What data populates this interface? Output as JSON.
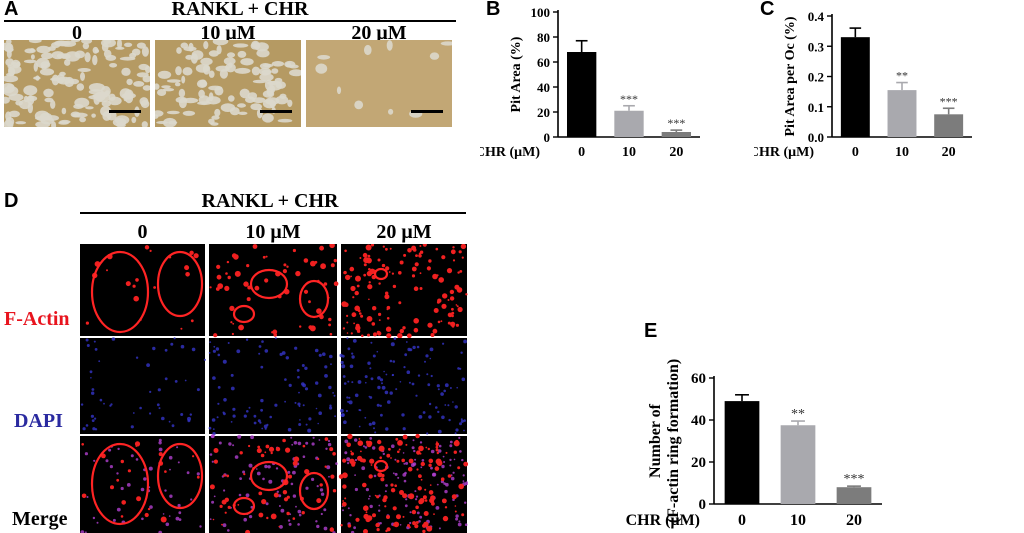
{
  "panel_a": {
    "letter": "A",
    "treatment": "RANKL + CHR",
    "concentrations": [
      "0",
      "10 μM",
      "20 μM"
    ],
    "pit_colors": {
      "base": "#b59a63",
      "bright": "#dcd8cc"
    }
  },
  "panel_d": {
    "letter": "D",
    "treatment": "RANKL + CHR",
    "concentrations": [
      "0",
      "10 μM",
      "20 μM"
    ],
    "rows": [
      "F-Actin",
      "DAPI",
      "Merge"
    ],
    "row_colors": {
      "factin": "#e8141e",
      "dapi": "#2a2aa0",
      "merge": "#000000"
    }
  },
  "chart_data": [
    {
      "panel": "B",
      "type": "bar",
      "categories": [
        "0",
        "10",
        "20"
      ],
      "values": [
        68,
        21,
        4
      ],
      "errors": [
        9,
        4,
        1.5
      ],
      "significance": [
        "",
        "***",
        "***"
      ],
      "ylabel": "Pit Area  (%)",
      "xlabel": "CHR (μM)",
      "ylim": [
        0,
        100
      ],
      "yticks": [
        "0",
        "20",
        "40",
        "60",
        "80",
        "100"
      ],
      "colors": [
        "#000000",
        "#a9a9ae",
        "#7c7c7c"
      ]
    },
    {
      "panel": "C",
      "type": "bar",
      "categories": [
        "0",
        "10",
        "20"
      ],
      "values": [
        0.33,
        0.155,
        0.075
      ],
      "errors": [
        0.03,
        0.025,
        0.02
      ],
      "significance": [
        "",
        "**",
        "***"
      ],
      "ylabel": "Pit Area per Oc (%)",
      "xlabel": "CHR (μM)",
      "ylim": [
        0,
        0.4
      ],
      "yticks": [
        "0.0",
        "0.1",
        "0.2",
        "0.3",
        "0.4"
      ],
      "colors": [
        "#000000",
        "#a9a9ae",
        "#7c7c7c"
      ]
    },
    {
      "panel": "E",
      "type": "bar",
      "categories": [
        "0",
        "10",
        "20"
      ],
      "values": [
        49,
        37.5,
        8
      ],
      "errors": [
        3,
        2,
        0.5
      ],
      "significance": [
        "",
        "**",
        "***"
      ],
      "ylabel_lines": [
        "Number of",
        "(F-actin ring formation)"
      ],
      "xlabel": "CHR (μM)",
      "ylim": [
        0,
        60
      ],
      "yticks": [
        "0",
        "20",
        "40",
        "60"
      ],
      "colors": [
        "#000000",
        "#a9a9ae",
        "#7c7c7c"
      ]
    }
  ]
}
